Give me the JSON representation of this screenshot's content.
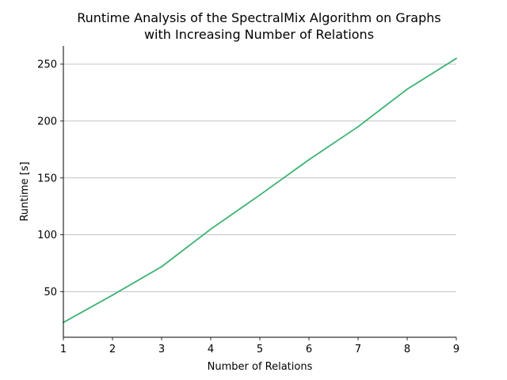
{
  "chart_data": {
    "type": "line",
    "title_lines": [
      "Runtime Analysis of the SpectralMix Algorithm on Graphs",
      "with Increasing Number of Relations"
    ],
    "xlabel": "Number of Relations",
    "ylabel": "Runtime [s]",
    "x": [
      1,
      2,
      3,
      4,
      5,
      6,
      7,
      8,
      9
    ],
    "series": [
      {
        "values": [
          23,
          47,
          72,
          105,
          135,
          166,
          195,
          228,
          255
        ],
        "color": "#3cb371"
      }
    ],
    "xlim": [
      1,
      9
    ],
    "ylim": [
      10,
      266
    ],
    "xticks": [
      1,
      2,
      3,
      4,
      5,
      6,
      7,
      8,
      9
    ],
    "yticks": [
      50,
      100,
      150,
      200,
      250
    ],
    "grid": "horizontal",
    "grid_color": "#b0b0b0"
  }
}
